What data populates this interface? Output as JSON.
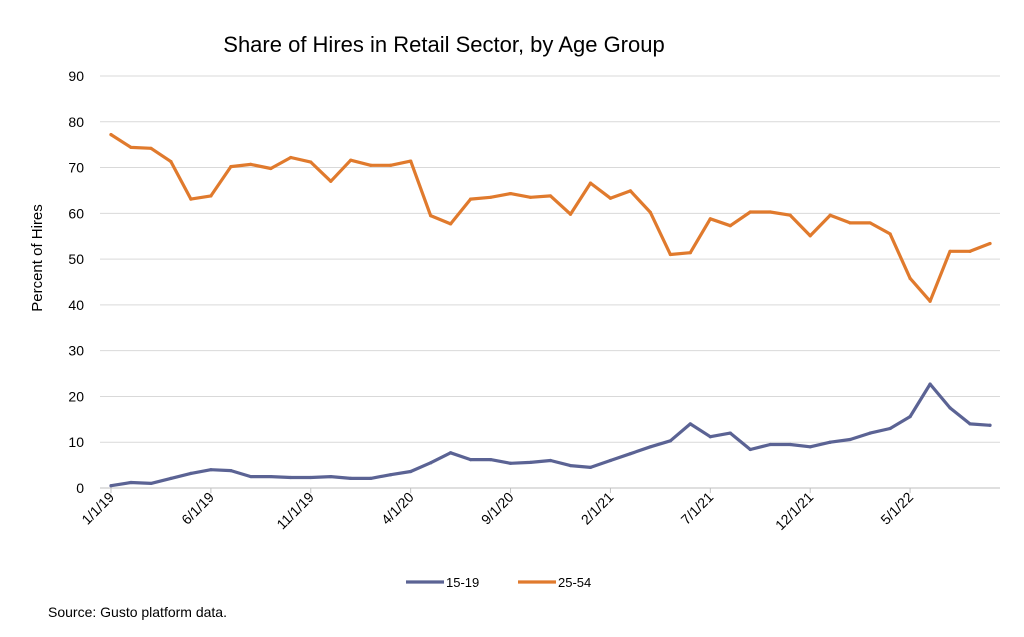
{
  "chart_data": {
    "type": "line",
    "title": "Share of Hires in Retail Sector, by Age Group",
    "xlabel": "",
    "ylabel": "Percent of Hires",
    "ylim": [
      0,
      90
    ],
    "yticks": [
      0,
      10,
      20,
      30,
      40,
      50,
      60,
      70,
      80,
      90
    ],
    "grid": true,
    "legend_position": "bottom",
    "x": [
      "1/1/19",
      "2/1/19",
      "3/1/19",
      "4/1/19",
      "5/1/19",
      "6/1/19",
      "7/1/19",
      "8/1/19",
      "9/1/19",
      "10/1/19",
      "11/1/19",
      "12/1/19",
      "1/1/20",
      "2/1/20",
      "3/1/20",
      "4/1/20",
      "5/1/20",
      "6/1/20",
      "7/1/20",
      "8/1/20",
      "9/1/20",
      "10/1/20",
      "11/1/20",
      "12/1/20",
      "1/1/21",
      "2/1/21",
      "3/1/21",
      "4/1/21",
      "5/1/21",
      "6/1/21",
      "7/1/21",
      "8/1/21",
      "9/1/21",
      "10/1/21",
      "11/1/21",
      "12/1/21",
      "1/1/22",
      "2/1/22",
      "3/1/22",
      "4/1/22",
      "5/1/22",
      "6/1/22",
      "7/1/22",
      "8/1/22",
      "9/1/22"
    ],
    "xtick_labels": [
      "1/1/19",
      "6/1/19",
      "11/1/19",
      "4/1/20",
      "9/1/20",
      "2/1/21",
      "7/1/21",
      "12/1/21",
      "5/1/22"
    ],
    "series": [
      {
        "name": "15-19",
        "color": "#5b6394",
        "values": [
          0.5,
          1.2,
          1.0,
          2.1,
          3.2,
          4.0,
          3.8,
          2.5,
          2.5,
          2.3,
          2.3,
          2.5,
          2.1,
          2.1,
          2.9,
          3.6,
          5.5,
          7.7,
          6.2,
          6.2,
          5.4,
          5.6,
          6.0,
          4.9,
          4.5,
          6.0,
          7.5,
          9.0,
          10.3,
          14.0,
          11.2,
          12.0,
          8.4,
          9.5,
          9.5,
          9.0,
          10.0,
          10.6,
          12.0,
          13.0,
          15.6,
          22.7,
          17.5,
          14.0,
          13.7
        ]
      },
      {
        "name": "25-54",
        "color": "#e07a2d",
        "values": [
          77.2,
          74.4,
          74.2,
          71.3,
          63.1,
          63.8,
          70.2,
          70.7,
          69.8,
          72.2,
          71.2,
          67.0,
          71.6,
          70.5,
          70.5,
          71.4,
          59.5,
          57.7,
          63.1,
          63.5,
          64.3,
          63.5,
          63.8,
          59.8,
          66.6,
          63.3,
          64.9,
          60.2,
          51.0,
          51.4,
          58.8,
          57.3,
          60.3,
          60.3,
          59.6,
          55.1,
          59.6,
          57.9,
          57.9,
          55.5,
          45.8,
          40.8,
          51.7,
          51.7,
          53.4
        ]
      }
    ]
  },
  "source_note": "Source: Gusto platform data."
}
